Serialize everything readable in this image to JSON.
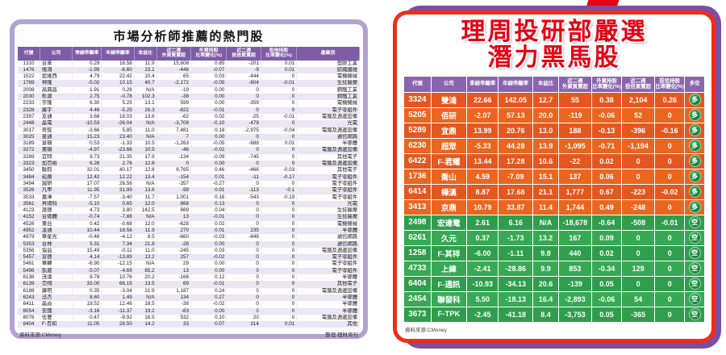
{
  "colors": {
    "left_panel_border": "#b3a2d1",
    "table_header_purple": "#7e5ca8",
    "right_panel_border_red": "#ee2d16",
    "right_panel_shadow_purple": "#7c4da0",
    "title_red": "#e60012",
    "bull_row_orange": "#e4571f",
    "bear_row_green": "#2f9e4c",
    "badge_green": "#0c7031"
  },
  "left_panel": {
    "title": "市場分析師推薦的熱門股",
    "headers": [
      "代號",
      "公司",
      "季線乖離率",
      "年線乖離率",
      "本益比",
      "近二週\n外資買賣超",
      "外資持股\n比率變化(%)",
      "近二週\n投信買賣超",
      "投信持股\n比率變化(%)",
      "產業別"
    ],
    "rows": [
      [
        "1310",
        "台苯",
        "0.29",
        "16.58",
        "11.9",
        "15,608",
        "0.85",
        "-201",
        "0.01",
        "塑膠工業"
      ],
      [
        "1476",
        "儒鴻",
        "-1.99",
        "-6.60",
        "23.1",
        "-446",
        "-0.07",
        "-9",
        "0.01",
        "紡織纖維"
      ],
      [
        "1522",
        "堤維西",
        "4.79",
        "22.42",
        "10.4",
        "65",
        "0.03",
        "-444",
        "0",
        "電機機械"
      ],
      [
        "1789",
        "神隆",
        "-5.02",
        "10.15",
        "40.7",
        "-2,172",
        "-0.05",
        "-804",
        "-0.01",
        "生技醫療"
      ],
      [
        "2008",
        "高興昌",
        "1.91",
        "0.26",
        "N/A",
        "-19",
        "0.00",
        "0",
        "0",
        "鋼鐵工業"
      ],
      [
        "2030",
        "彰源",
        "2.75",
        "-0.78",
        "102.3",
        "-38",
        "0.00",
        "0",
        "0",
        "鋼鐵工業"
      ],
      [
        "2233",
        "宇隆",
        "6.30",
        "5.25",
        "13.1",
        "599",
        "0.00",
        "-359",
        "0",
        "電機機械"
      ],
      [
        "2328",
        "廣宇",
        "4.46",
        "-5.25",
        "26.3",
        "-822",
        "-0.01",
        "0",
        "0",
        "電子零組件"
      ],
      [
        "2397",
        "友通",
        "3.68",
        "18.03",
        "13.6",
        "-62",
        "0.02",
        "-25",
        "-0.01",
        "電腦及週邊設備"
      ],
      [
        "2448",
        "晶電",
        "-10.53",
        "-26.04",
        "N/A",
        "-3,709",
        "-0.10",
        "-479",
        "0",
        "光電"
      ],
      [
        "3017",
        "奇鋐",
        "-3.66",
        "5.85",
        "11.0",
        "7,481",
        "0.18",
        "-2,975",
        "-0.04",
        "電腦及週邊設備"
      ],
      [
        "3025",
        "星通",
        "15.23",
        "23.40",
        "N/A",
        "7",
        "0.00",
        "0",
        "0",
        "通信網路"
      ],
      [
        "3189",
        "景碩",
        "0.53",
        "-1.33",
        "10.5",
        "-1,263",
        "-0.05",
        "-688",
        "0.01",
        "半導體"
      ],
      [
        "3272",
        "東碩",
        "-4.97",
        "-23.66",
        "10.5",
        "-46",
        "-0.02",
        "0",
        "0",
        "電腦及週邊設備"
      ],
      [
        "3289",
        "宜特",
        "9.73",
        "21.35",
        "17.9",
        "-134",
        "-0.09",
        "-745",
        "0",
        "其他電子"
      ],
      [
        "3323",
        "加百裕",
        "6.26",
        "2.76",
        "12.6",
        "0",
        "0.00",
        "0",
        "0",
        "電腦及週邊設備"
      ],
      [
        "3450",
        "聯鈞",
        "32.01",
        "40.17",
        "12.6",
        "6,765",
        "0.46",
        "-466",
        "-0.03",
        "其他電子"
      ],
      [
        "3484",
        "崧騰",
        "12.42",
        "12.22",
        "13.4",
        "-154",
        "0.01",
        "-11",
        "-0.17",
        "電子零組件"
      ],
      [
        "3494",
        "誠研",
        "17.07",
        "26.56",
        "N/A",
        "-357",
        "-0.27",
        "0",
        "0",
        "電子零組件"
      ],
      [
        "3526",
        "凡甲",
        "11.95",
        "31.99",
        "13.6",
        "-99",
        "0.01",
        "-113",
        "-0.1",
        "電子零組件"
      ],
      [
        "3533",
        "嘉澤",
        "-7.57",
        "-3.40",
        "11.7",
        "1,001",
        "0.16",
        "-543",
        "-0.19",
        "電子零組件"
      ],
      [
        "3561",
        "昇陽科",
        "-5.10",
        "0.65",
        "12.0",
        "868",
        "0.13",
        "0",
        "0",
        "光電"
      ],
      [
        "4123",
        "晟德",
        "4.73",
        "3.80",
        "142.5",
        "669",
        "0.04",
        "0",
        "0",
        "生技醫療"
      ],
      [
        "4152",
        "台微體",
        "-0.74",
        "-7.88",
        "N/A",
        "13",
        "-0.01",
        "0",
        "0",
        "生技醫療"
      ],
      [
        "4526",
        "東台",
        "0.42",
        "-0.68",
        "12.0",
        "-628",
        "0.02",
        "0",
        "0",
        "電機機械"
      ],
      [
        "4952",
        "凌通",
        "10.44",
        "18.56",
        "11.9",
        "270",
        "0.01",
        "235",
        "0",
        "半導體"
      ],
      [
        "4979",
        "華星光",
        "-0.46",
        "-4.12",
        "8.5",
        "-660",
        "-0.03",
        "-848",
        "0",
        "通信網路"
      ],
      [
        "5353",
        "台林",
        "5.31",
        "7.34",
        "21.8",
        "-28",
        "0.00",
        "0",
        "0",
        "通信網路"
      ],
      [
        "5356",
        "協益",
        "15.49",
        "-0.11",
        "11.0",
        "-245",
        "0.03",
        "0",
        "0",
        "電腦及週邊設備"
      ],
      [
        "5457",
        "宣德",
        "4.14",
        "-13.89",
        "13.2",
        "257",
        "-0.02",
        "0",
        "0",
        "電子零組件"
      ],
      [
        "5481",
        "華韡",
        "-6.90",
        "-12.15",
        "N/A",
        "29",
        "0.00",
        "0",
        "0",
        "電子零組件"
      ],
      [
        "5498",
        "凱崴",
        "-5.07",
        "-4.69",
        "85.2",
        "13",
        "0.00",
        "0",
        "0",
        "電子零組件"
      ],
      [
        "6138",
        "茂達",
        "8.78",
        "10.76",
        "20.2",
        "-166",
        "0.12",
        "0",
        "0",
        "半導體"
      ],
      [
        "6139",
        "亞翔",
        "33.00",
        "66.15",
        "13.5",
        "69",
        "-0.01",
        "0",
        "0",
        "其他電子"
      ],
      [
        "6188",
        "廣明",
        "0.35",
        "-3.04",
        "31.9",
        "1,187",
        "0.24",
        "0",
        "0",
        "電腦及週邊設備"
      ],
      [
        "6243",
        "迅杰",
        "8.60",
        "1.49",
        "N/A",
        "134",
        "0.27",
        "0",
        "0",
        "半導體"
      ],
      [
        "6411",
        "晶焱",
        "19.52",
        "12.46",
        "18.5",
        "-38",
        "-0.02",
        "0",
        "0",
        "半導體"
      ],
      [
        "8054",
        "安國",
        "-3.16",
        "-11.37",
        "19.2",
        "-83",
        "0.00",
        "0",
        "0",
        "半導體"
      ],
      [
        "8076",
        "伍豐",
        "0.47",
        "-9.92",
        "16.5",
        "532",
        "0.10",
        "20",
        "0",
        "電腦及週邊設備"
      ],
      [
        "8404",
        "F-百和",
        "11.05",
        "28.50",
        "14.2",
        "33",
        "0.07",
        "314",
        "0.01",
        "其他"
      ]
    ],
    "source": "資料來源:CMoney",
    "credit": "整理:理財周刊"
  },
  "right_panel": {
    "title_line1": "理周投研部嚴選",
    "title_line2": "潛力黑馬股",
    "headers": [
      "代號",
      "公司",
      "季線乖離率",
      "年線乖離率",
      "本益比",
      "近二週\n外資買賣超",
      "外資持股\n比率變化(%)",
      "近二週\n投信買賣超",
      "投信持股\n比率變化(%)",
      "多空"
    ],
    "rows": [
      {
        "group": "bull",
        "cells": [
          "3324",
          "雙鴻",
          "22.66",
          "142.05",
          "12.7",
          "55",
          "0.38",
          "2,104",
          "0.26",
          "多"
        ]
      },
      {
        "group": "bull",
        "cells": [
          "5205",
          "佰研",
          "-2.07",
          "57.13",
          "20.0",
          "-119",
          "-0.06",
          "52",
          "0",
          "多"
        ]
      },
      {
        "group": "bull",
        "cells": [
          "5289",
          "宜鼎",
          "13.99",
          "20.76",
          "13.0",
          "188",
          "-0.13",
          "-396",
          "-0.16",
          "多"
        ]
      },
      {
        "group": "bull",
        "cells": [
          "6230",
          "超眾",
          "-5.33",
          "44.28",
          "13.9",
          "-1,095",
          "-0.71",
          "-1,194",
          "0",
          "多"
        ]
      },
      {
        "group": "bull",
        "cells": [
          "6422",
          "F-君耀",
          "13.44",
          "17.28",
          "10.6",
          "-22",
          "0.02",
          "0",
          "0",
          "多"
        ]
      },
      {
        "group": "bull",
        "cells": [
          "1736",
          "喬山",
          "4.59",
          "-7.09",
          "15.1",
          "137",
          "0.06",
          "0",
          "0",
          "多"
        ]
      },
      {
        "group": "bull",
        "cells": [
          "6414",
          "樺漢",
          "8.87",
          "17.68",
          "21.1",
          "1,777",
          "0.67",
          "-223",
          "-0.02",
          "多"
        ]
      },
      {
        "group": "bull",
        "cells": [
          "3413",
          "京鼎",
          "10.79",
          "33.87",
          "11.4",
          "1,744",
          "0.49",
          "-248",
          "0",
          "多"
        ]
      },
      {
        "group": "bear",
        "cells": [
          "2498",
          "宏達電",
          "2.61",
          "6.16",
          "N/A",
          "-18,678",
          "-0.64",
          "-508",
          "-0.01",
          "空"
        ]
      },
      {
        "group": "bear",
        "cells": [
          "6261",
          "久元",
          "0.37",
          "-1.73",
          "13.2",
          "167",
          "0.09",
          "0",
          "0",
          "空"
        ]
      },
      {
        "group": "bear",
        "cells": [
          "1258",
          "F-其祥",
          "-6.00",
          "-1.11",
          "9.8",
          "440",
          "0.02",
          "0",
          "0",
          "空"
        ]
      },
      {
        "group": "bear",
        "cells": [
          "4733",
          "上緯",
          "-2.41",
          "-28.86",
          "9.9",
          "853",
          "-0.34",
          "129",
          "0",
          "空"
        ]
      },
      {
        "group": "bear",
        "cells": [
          "6404",
          "F-通訊",
          "-10.93",
          "-34.13",
          "20.6",
          "-139",
          "0.05",
          "0",
          "0",
          "空"
        ]
      },
      {
        "group": "bear",
        "cells": [
          "2454",
          "聯發科",
          "5.50",
          "-18.13",
          "16.4",
          "-2,893",
          "-0.06",
          "54",
          "0",
          "空"
        ]
      },
      {
        "group": "bear",
        "cells": [
          "3673",
          "F-TPK",
          "-2.45",
          "-41.18",
          "8.4",
          "-3,753",
          "0.05",
          "-365",
          "0",
          "空"
        ]
      }
    ],
    "source": "資料來源:CMoney"
  }
}
